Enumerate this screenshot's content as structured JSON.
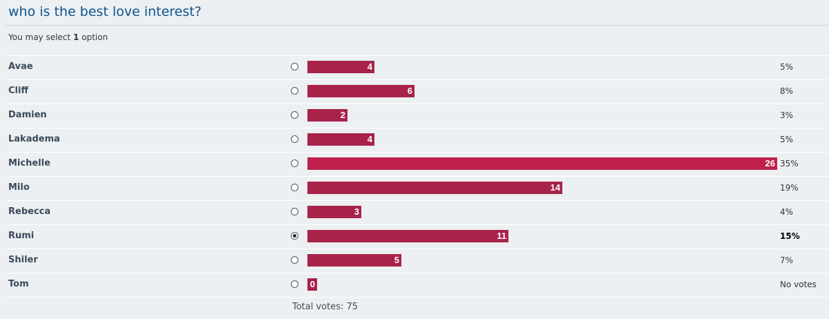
{
  "poll": {
    "title": "who is the best love interest?",
    "info_prefix": "You may select ",
    "info_count": "1",
    "info_suffix": " option",
    "bar_color": "#a8224a",
    "top_bar_color": "#c11f4c",
    "title_color": "#105289",
    "options": [
      {
        "label": "Avae",
        "votes": "4",
        "percent": "5%",
        "fraction": 0.05,
        "selected": false
      },
      {
        "label": "Cliff",
        "votes": "6",
        "percent": "8%",
        "fraction": 0.08,
        "selected": false
      },
      {
        "label": "Damien",
        "votes": "2",
        "percent": "3%",
        "fraction": 0.03,
        "selected": false
      },
      {
        "label": "Lakadema",
        "votes": "4",
        "percent": "5%",
        "fraction": 0.05,
        "selected": false
      },
      {
        "label": "Michelle",
        "votes": "26",
        "percent": "35%",
        "fraction": 0.35,
        "selected": false,
        "top": true
      },
      {
        "label": "Milo",
        "votes": "14",
        "percent": "19%",
        "fraction": 0.19,
        "selected": false
      },
      {
        "label": "Rebecca",
        "votes": "3",
        "percent": "4%",
        "fraction": 0.04,
        "selected": false
      },
      {
        "label": "Rumi",
        "votes": "11",
        "percent": "15%",
        "fraction": 0.15,
        "selected": true
      },
      {
        "label": "Shiler",
        "votes": "5",
        "percent": "7%",
        "fraction": 0.07,
        "selected": false
      },
      {
        "label": "Tom",
        "votes": "0",
        "percent": "No votes",
        "fraction": 0.0,
        "selected": false
      }
    ],
    "total_votes_text": "Total votes: 75"
  }
}
